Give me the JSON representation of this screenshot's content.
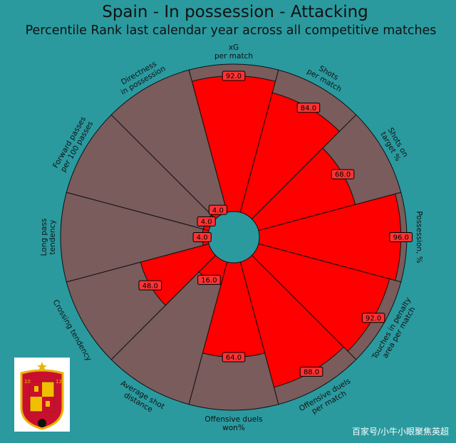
{
  "title": "Spain - In possession - Attacking",
  "subtitle": "Percentile Rank last calendar year across all competitive matches",
  "watermark": "百家号/小牛小眼聚焦英超",
  "colors": {
    "background": "#2a9a9f",
    "slice_fill": "#ff0000",
    "slice_background": "#7a5c5c",
    "edge": "#111111",
    "value_box": "#ff3333"
  },
  "chart_data": {
    "type": "pie",
    "subtype": "polar-bar (pizza) chart",
    "scale": [
      0,
      100
    ],
    "categories": [
      "xG\nper match",
      "Shots\nper match",
      "Shots on\ntarget %",
      "Possession, %",
      "Touches in penalty\narea per match",
      "Offensive duels\nper match",
      "Offensive duels\nwon%",
      "Average shot\ndistance",
      "Crossing tendency",
      "Long pass\ntendency",
      "Forward passes\nper 100 passes",
      "Directness\nin possession"
    ],
    "values": [
      92,
      84,
      68,
      96,
      92,
      88,
      64,
      16,
      48,
      4,
      4,
      4
    ],
    "value_labels": [
      "92.0",
      "84.0",
      "68.0",
      "96.0",
      "92.0",
      "88.0",
      "64.0",
      "16.0",
      "48.0",
      "4.0",
      "4.0",
      "4.0"
    ]
  },
  "logo": {
    "description": "Spain national team crest",
    "icon": "spain-crest-icon"
  }
}
